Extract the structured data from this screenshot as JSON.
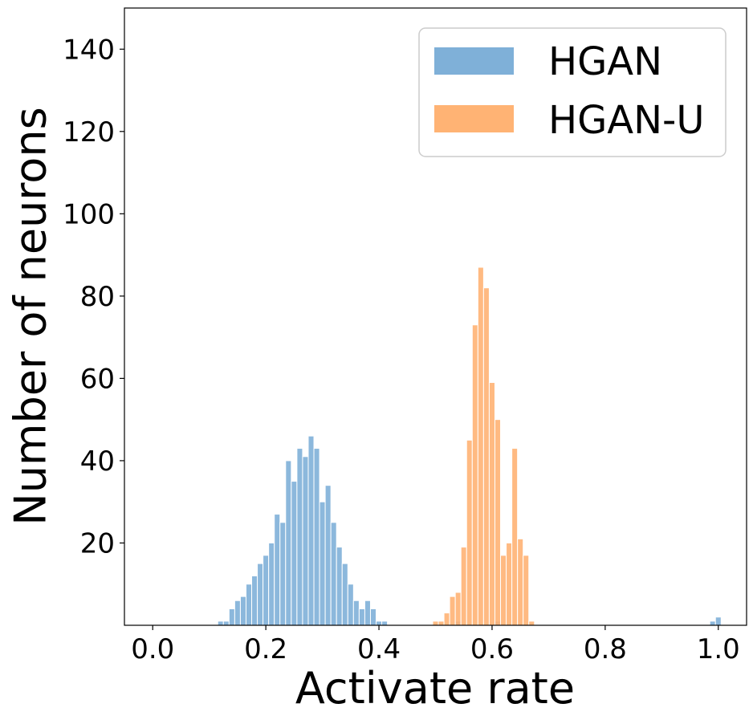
{
  "chart_data": {
    "type": "histogram",
    "title": "",
    "xlabel": "Activate rate",
    "ylabel": "Number of neurons",
    "xlim": [
      -0.05,
      1.05
    ],
    "ylim": [
      0,
      150
    ],
    "xticks": [
      0.0,
      0.2,
      0.4,
      0.6,
      0.8,
      1.0
    ],
    "xtick_labels": [
      "0.0",
      "0.2",
      "0.4",
      "0.6",
      "0.8",
      "1.0"
    ],
    "yticks": [
      20,
      40,
      60,
      80,
      100,
      120,
      140
    ],
    "ytick_labels": [
      "20",
      "40",
      "60",
      "80",
      "100",
      "120",
      "140"
    ],
    "grid": false,
    "legend_position": "top-right",
    "bin_width": 0.01,
    "series": [
      {
        "name": "HGAN",
        "color": "#7fb0d8",
        "bins": [
          {
            "x": 0.12,
            "y": 1
          },
          {
            "x": 0.13,
            "y": 1
          },
          {
            "x": 0.14,
            "y": 4
          },
          {
            "x": 0.15,
            "y": 6
          },
          {
            "x": 0.16,
            "y": 7
          },
          {
            "x": 0.17,
            "y": 10
          },
          {
            "x": 0.18,
            "y": 12
          },
          {
            "x": 0.19,
            "y": 15
          },
          {
            "x": 0.2,
            "y": 17
          },
          {
            "x": 0.21,
            "y": 20
          },
          {
            "x": 0.22,
            "y": 27
          },
          {
            "x": 0.23,
            "y": 25
          },
          {
            "x": 0.24,
            "y": 40
          },
          {
            "x": 0.25,
            "y": 35
          },
          {
            "x": 0.26,
            "y": 43
          },
          {
            "x": 0.27,
            "y": 41
          },
          {
            "x": 0.28,
            "y": 46
          },
          {
            "x": 0.29,
            "y": 43
          },
          {
            "x": 0.3,
            "y": 30
          },
          {
            "x": 0.31,
            "y": 34
          },
          {
            "x": 0.32,
            "y": 25
          },
          {
            "x": 0.33,
            "y": 19
          },
          {
            "x": 0.34,
            "y": 15
          },
          {
            "x": 0.35,
            "y": 10
          },
          {
            "x": 0.36,
            "y": 6
          },
          {
            "x": 0.37,
            "y": 4
          },
          {
            "x": 0.38,
            "y": 6
          },
          {
            "x": 0.39,
            "y": 4
          },
          {
            "x": 0.4,
            "y": 1
          },
          {
            "x": 0.41,
            "y": 1
          },
          {
            "x": 0.54,
            "y": 1
          },
          {
            "x": 0.61,
            "y": 1
          },
          {
            "x": 0.99,
            "y": 1
          },
          {
            "x": 1.0,
            "y": 2
          }
        ]
      },
      {
        "name": "HGAN-U",
        "color": "#ffb374",
        "bins": [
          {
            "x": 0.5,
            "y": 1
          },
          {
            "x": 0.51,
            "y": 1
          },
          {
            "x": 0.52,
            "y": 3
          },
          {
            "x": 0.53,
            "y": 7
          },
          {
            "x": 0.54,
            "y": 8
          },
          {
            "x": 0.55,
            "y": 19
          },
          {
            "x": 0.56,
            "y": 45
          },
          {
            "x": 0.57,
            "y": 73
          },
          {
            "x": 0.58,
            "y": 87
          },
          {
            "x": 0.59,
            "y": 82
          },
          {
            "x": 0.6,
            "y": 59
          },
          {
            "x": 0.61,
            "y": 50
          },
          {
            "x": 0.62,
            "y": 17
          },
          {
            "x": 0.63,
            "y": 20
          },
          {
            "x": 0.64,
            "y": 43
          },
          {
            "x": 0.65,
            "y": 21
          },
          {
            "x": 0.66,
            "y": 17
          },
          {
            "x": 0.67,
            "y": 1
          }
        ]
      }
    ]
  }
}
